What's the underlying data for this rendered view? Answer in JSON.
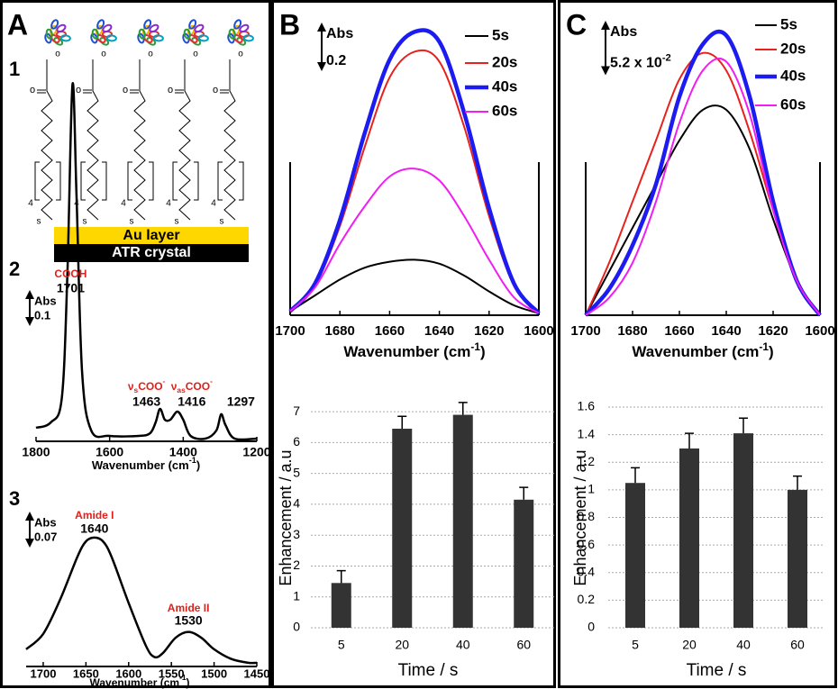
{
  "panel_labels": [
    "A",
    "B",
    "C"
  ],
  "sub_labels": [
    "1",
    "2",
    "3"
  ],
  "diagram": {
    "layers": [
      "Au layer",
      "ATR crystal"
    ],
    "chain_labels": [
      "o",
      "4",
      "s"
    ]
  },
  "chart_data": [
    {
      "type": "line",
      "x": [
        1800,
        1760,
        1730,
        1715,
        1701,
        1690,
        1675,
        1650,
        1600,
        1520,
        1490,
        1475,
        1463,
        1450,
        1435,
        1416,
        1400,
        1380,
        1340,
        1310,
        1297,
        1285,
        1260,
        1200
      ],
      "series": [
        {
          "color": "#000000",
          "width": 2.5,
          "values": [
            0.04,
            0.06,
            0.15,
            0.6,
            1.31,
            0.9,
            0.25,
            0.03,
            0.01,
            0.01,
            0.02,
            0.06,
            0.11,
            0.07,
            0.07,
            0.1,
            0.07,
            0.01,
            0.0,
            0.03,
            0.09,
            0.05,
            0.0,
            0.0
          ]
        }
      ],
      "xlim": [
        1800,
        1200
      ],
      "xticks": [
        1800,
        1600,
        1400,
        1200
      ],
      "ylim": [
        0,
        1.4
      ],
      "x_label": [
        "Wavenumber (cm",
        "-1",
        ")"
      ],
      "scale_bar": {
        "name": "Abs",
        "value": 0.1
      },
      "peaks": [
        {
          "name": "COOH",
          "value": 1701
        },
        {
          "name": [
            "ν",
            "s",
            "COO",
            "-"
          ],
          "value": 1463
        },
        {
          "name": [
            "ν",
            "as",
            "COO",
            "-"
          ],
          "value": 1416
        },
        {
          "value": 1297
        }
      ]
    },
    {
      "type": "line",
      "x": [
        1720,
        1700,
        1680,
        1660,
        1650,
        1640,
        1630,
        1620,
        1600,
        1580,
        1570,
        1560,
        1545,
        1530,
        1515,
        1500,
        1480,
        1460,
        1450
      ],
      "series": [
        {
          "color": "#000000",
          "width": 2.5,
          "values": [
            0.04,
            0.08,
            0.17,
            0.28,
            0.32,
            0.33,
            0.32,
            0.28,
            0.16,
            0.05,
            0.02,
            0.03,
            0.07,
            0.085,
            0.07,
            0.04,
            0.015,
            0.005,
            0.005
          ]
        }
      ],
      "xlim": [
        1720,
        1450
      ],
      "xticks": [
        1700,
        1650,
        1600,
        1550,
        1500,
        1450
      ],
      "ylim": [
        0,
        0.36
      ],
      "x_label": [
        "Wavenumber (cm",
        "-1",
        ")"
      ],
      "scale_bar": {
        "name": "Abs",
        "value": 0.07
      },
      "peaks": [
        {
          "name": "Amide I",
          "value": 1640
        },
        {
          "name": "Amide II",
          "value": 1530
        }
      ]
    },
    {
      "type": "line",
      "x": [
        1700,
        1690,
        1680,
        1670,
        1660,
        1650,
        1640,
        1630,
        1620,
        1610,
        1600
      ],
      "series": [
        {
          "name": "5s",
          "color": "#000000",
          "width": 2,
          "values": [
            0.02,
            0.1,
            0.18,
            0.24,
            0.27,
            0.28,
            0.26,
            0.2,
            0.12,
            0.05,
            0.01
          ]
        },
        {
          "name": "20s",
          "color": "#e8211d",
          "width": 2,
          "values": [
            0.02,
            0.15,
            0.45,
            0.85,
            1.2,
            1.33,
            1.28,
            0.95,
            0.5,
            0.15,
            0.01
          ]
        },
        {
          "name": "40s",
          "color": "#1c1cf0",
          "width": 4.5,
          "values": [
            0.02,
            0.16,
            0.48,
            0.92,
            1.29,
            1.43,
            1.38,
            1.02,
            0.54,
            0.16,
            0.01
          ]
        },
        {
          "name": "60s",
          "color": "#f01ef0",
          "width": 2,
          "values": [
            0.02,
            0.14,
            0.36,
            0.55,
            0.7,
            0.74,
            0.68,
            0.5,
            0.28,
            0.09,
            0.01
          ]
        }
      ],
      "xlim": [
        1700,
        1600
      ],
      "xticks": [
        1700,
        1680,
        1660,
        1640,
        1620,
        1600
      ],
      "ylim": [
        0,
        1.5
      ],
      "legend": true,
      "x_label": [
        "Wavenumber (cm",
        "-1",
        ")"
      ],
      "scale_bar": {
        "name": "Abs",
        "value": 0.2
      }
    },
    {
      "type": "line",
      "x": [
        1700,
        1690,
        1680,
        1670,
        1660,
        1650,
        1640,
        1630,
        1620,
        1610,
        1600
      ],
      "series": [
        {
          "name": "5s",
          "color": "#000000",
          "width": 2,
          "values": [
            0.0,
            0.05,
            0.1,
            0.15,
            0.2,
            0.235,
            0.235,
            0.19,
            0.11,
            0.04,
            0.0
          ]
        },
        {
          "name": "20s",
          "color": "#e8211d",
          "width": 2,
          "values": [
            0.0,
            0.06,
            0.13,
            0.2,
            0.27,
            0.3,
            0.28,
            0.21,
            0.12,
            0.04,
            0.0
          ]
        },
        {
          "name": "40s",
          "color": "#1c1cf0",
          "width": 4.5,
          "values": [
            0.0,
            0.03,
            0.08,
            0.15,
            0.25,
            0.31,
            0.32,
            0.25,
            0.13,
            0.04,
            0.0
          ]
        },
        {
          "name": "60s",
          "color": "#f01ef0",
          "width": 2,
          "values": [
            0.0,
            0.02,
            0.06,
            0.13,
            0.22,
            0.28,
            0.29,
            0.23,
            0.12,
            0.04,
            0.0
          ]
        }
      ],
      "xlim": [
        1700,
        1600
      ],
      "xticks": [
        1700,
        1680,
        1660,
        1640,
        1620,
        1600
      ],
      "ylim": [
        0,
        0.34
      ],
      "legend": true,
      "x_label": [
        "Wavenumber (cm",
        "-1",
        ")"
      ],
      "scale_bar": {
        "name": "Abs",
        "value": 0.052,
        "label": [
          "5.2 x 10",
          "-2"
        ]
      }
    },
    {
      "type": "bar",
      "categories": [
        "5",
        "20",
        "40",
        "60"
      ],
      "values": [
        1.45,
        6.45,
        6.9,
        4.15
      ],
      "errors": [
        0.4,
        0.4,
        0.4,
        0.4
      ],
      "color": "#333333",
      "ylim": [
        0,
        7.5
      ],
      "yticks": [
        0,
        1,
        2,
        3,
        4,
        5,
        6,
        7
      ],
      "grid": true,
      "y_label": "Enhancement / a.u",
      "x_label": "Time / s"
    },
    {
      "type": "bar",
      "categories": [
        "5",
        "20",
        "40",
        "60"
      ],
      "values": [
        1.05,
        1.3,
        1.41,
        1.0
      ],
      "errors": [
        0.11,
        0.11,
        0.11,
        0.1
      ],
      "color": "#333333",
      "ylim": [
        0,
        1.6
      ],
      "yticks": [
        0,
        0.2,
        0.4,
        0.6,
        0.8,
        1,
        1.2,
        1.4,
        1.6
      ],
      "grid": true,
      "y_label": "Enhancement / a.u",
      "x_label": "Time / s"
    }
  ]
}
